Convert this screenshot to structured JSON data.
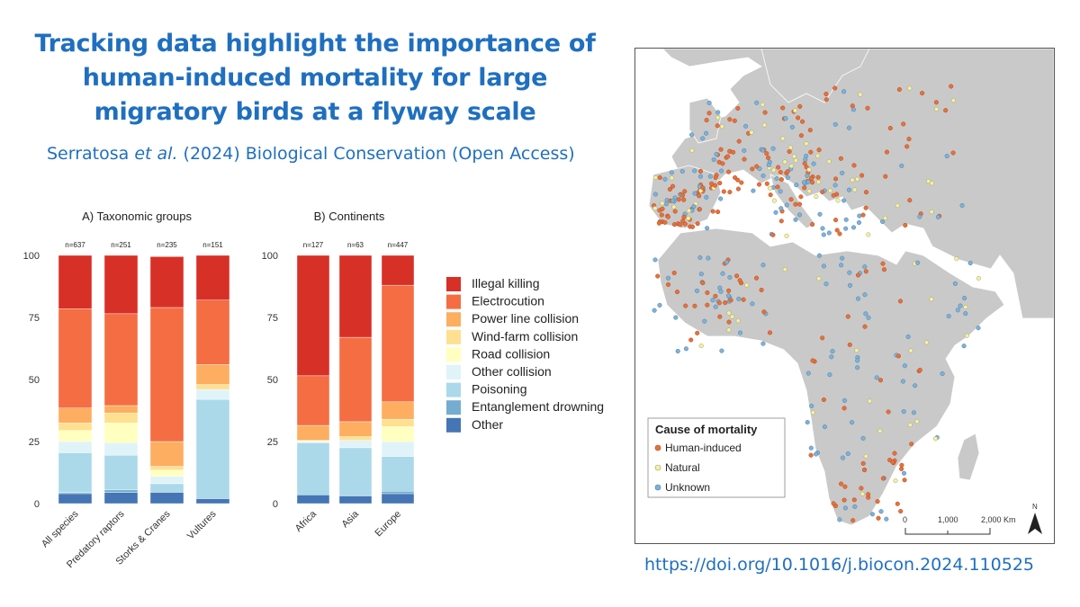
{
  "title_lines": [
    "Tracking data highlight the importance of",
    "human-induced mortality for large",
    "migratory birds at a flyway scale"
  ],
  "citation": {
    "authors": "Serratosa",
    "etal": "et al.",
    "rest": "(2024) Biological Conservation (Open Access)"
  },
  "doi": "https://doi.org/10.1016/j.biocon.2024.110525",
  "legend": [
    {
      "label": "Illegal killing",
      "color": "#d73027"
    },
    {
      "label": "Electrocution",
      "color": "#f46d43"
    },
    {
      "label": "Power line collision",
      "color": "#fdae61"
    },
    {
      "label": "Wind-farm collision",
      "color": "#fee090"
    },
    {
      "label": "Road collision",
      "color": "#ffffbf"
    },
    {
      "label": "Other collision",
      "color": "#e0f3f8"
    },
    {
      "label": "Poisoning",
      "color": "#abd9e9"
    },
    {
      "label": "Entanglement drowning",
      "color": "#74add1"
    },
    {
      "label": "Other",
      "color": "#4575b4"
    }
  ],
  "chart_data": [
    {
      "type": "bar",
      "stacked": true,
      "title": "A) Taxonomic groups",
      "ylim": [
        0,
        100
      ],
      "yticks": [
        0,
        25,
        50,
        75,
        100
      ],
      "categories": [
        "All species",
        "Predatory raptors",
        "Storks & Cranes",
        "Vultures"
      ],
      "n_labels": [
        "n=637",
        "n=251",
        "n=235",
        "n=151"
      ],
      "series": [
        {
          "name": "Other",
          "values": [
            4,
            4.5,
            4.5,
            2
          ]
        },
        {
          "name": "Entanglement drowning",
          "values": [
            0.5,
            1,
            0.5,
            0
          ]
        },
        {
          "name": "Poisoning",
          "values": [
            16,
            14,
            3,
            40
          ]
        },
        {
          "name": "Other collision",
          "values": [
            4.5,
            5,
            3,
            4
          ]
        },
        {
          "name": "Road collision",
          "values": [
            4.5,
            8,
            2.5,
            0
          ]
        },
        {
          "name": "Wind-farm collision",
          "values": [
            3,
            4,
            1.5,
            2
          ]
        },
        {
          "name": "Power line collision",
          "values": [
            6,
            3,
            10,
            8
          ]
        },
        {
          "name": "Electrocution",
          "values": [
            40,
            37,
            54,
            26
          ]
        },
        {
          "name": "Illegal killing",
          "values": [
            21.5,
            23.5,
            20.5,
            18
          ]
        }
      ]
    },
    {
      "type": "bar",
      "stacked": true,
      "title": "B) Continents",
      "ylim": [
        0,
        100
      ],
      "yticks": [
        0,
        25,
        50,
        75,
        100
      ],
      "categories": [
        "Africa",
        "Asia",
        "Europe"
      ],
      "n_labels": [
        "n=127",
        "n=63",
        "n=447"
      ],
      "series": [
        {
          "name": "Other",
          "values": [
            3.5,
            3,
            4
          ]
        },
        {
          "name": "Entanglement drowning",
          "values": [
            0,
            0.5,
            1
          ]
        },
        {
          "name": "Poisoning",
          "values": [
            21,
            19,
            14
          ]
        },
        {
          "name": "Other collision",
          "values": [
            0.5,
            3,
            6
          ]
        },
        {
          "name": "Road collision",
          "values": [
            0.5,
            0,
            6
          ]
        },
        {
          "name": "Wind-farm collision",
          "values": [
            0,
            1.5,
            3
          ]
        },
        {
          "name": "Power line collision",
          "values": [
            6,
            6,
            7
          ]
        },
        {
          "name": "Electrocution",
          "values": [
            20,
            34,
            47
          ]
        },
        {
          "name": "Illegal killing",
          "values": [
            48.5,
            33,
            12
          ]
        }
      ]
    }
  ],
  "map": {
    "legend_title": "Cause of mortality",
    "legend_items": [
      {
        "label": "Human-induced",
        "color": "#e8703a"
      },
      {
        "label": "Natural",
        "color": "#f3f0a8"
      },
      {
        "label": "Unknown",
        "color": "#7fb2d8"
      }
    ],
    "scale_labels": [
      "0",
      "1,000",
      "2,000 Km"
    ],
    "north_label": "N"
  }
}
